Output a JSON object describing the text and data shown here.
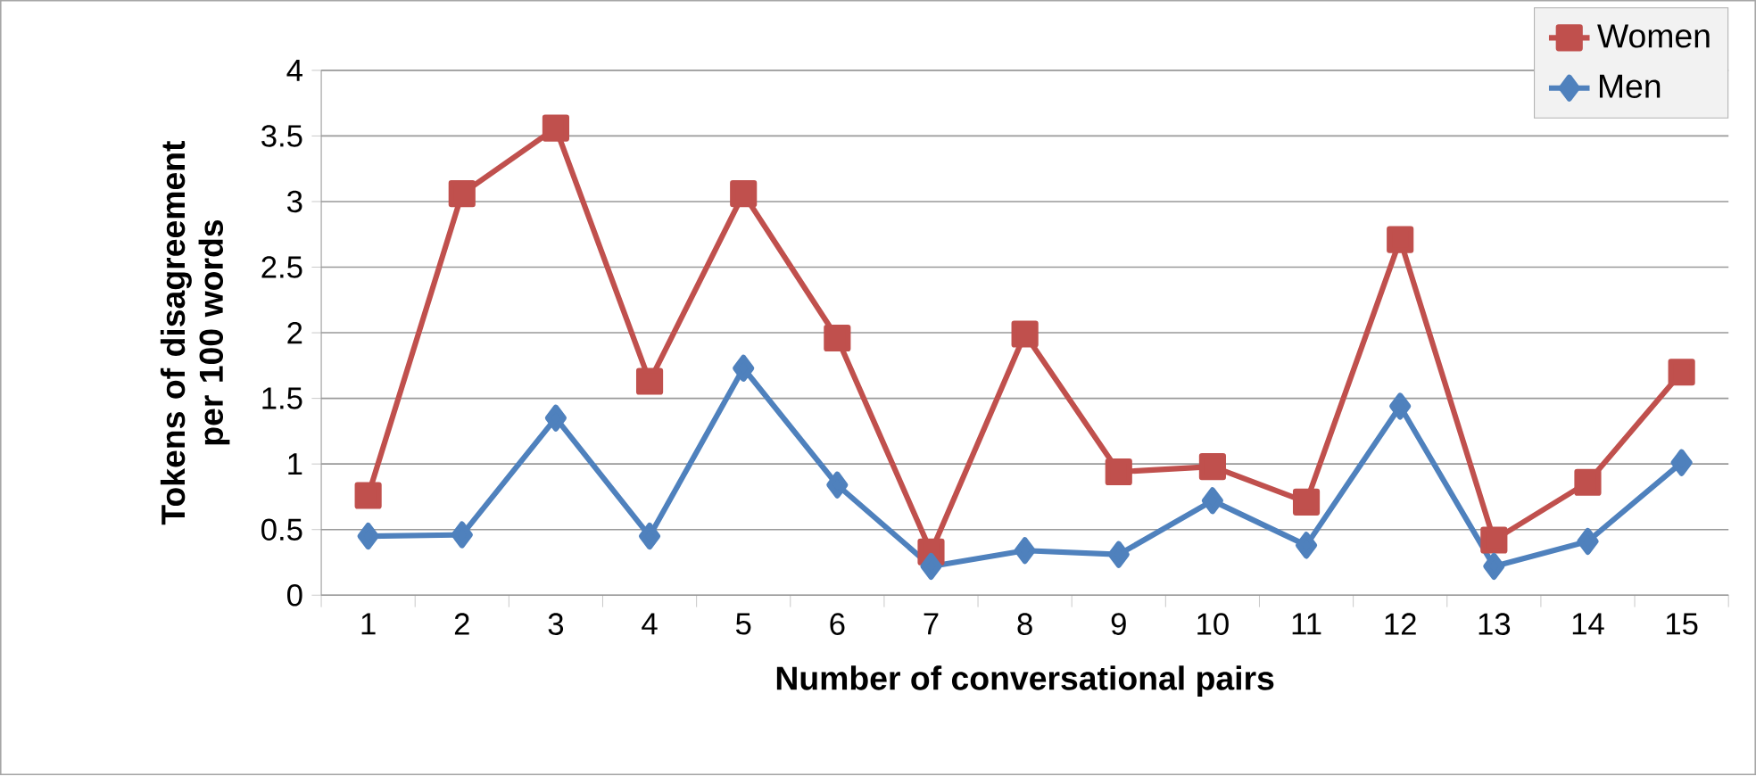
{
  "chart_data": {
    "type": "line",
    "xlabel": "Number of conversational pairs",
    "ylabel": "Tokens of disagreement per 100 words",
    "categories": [
      "1",
      "2",
      "3",
      "4",
      "5",
      "6",
      "7",
      "8",
      "9",
      "10",
      "11",
      "12",
      "13",
      "14",
      "15"
    ],
    "series": [
      {
        "name": "Women",
        "color": "#c0504d",
        "marker": "square",
        "values": [
          0.76,
          3.06,
          3.56,
          1.63,
          3.06,
          1.96,
          0.33,
          1.99,
          0.94,
          0.98,
          0.71,
          2.71,
          0.42,
          0.86,
          1.7
        ]
      },
      {
        "name": "Men",
        "color": "#4f81bd",
        "marker": "diamond",
        "values": [
          0.45,
          0.46,
          1.35,
          0.45,
          1.73,
          0.84,
          0.22,
          0.34,
          0.31,
          0.72,
          0.38,
          1.44,
          0.22,
          0.41,
          1.01
        ]
      }
    ],
    "ylim": [
      0,
      4
    ],
    "yticks": [
      0,
      0.5,
      1,
      1.5,
      2,
      2.5,
      3,
      3.5,
      4
    ],
    "grid": "y",
    "legend": "top right",
    "line_style": "solid"
  }
}
